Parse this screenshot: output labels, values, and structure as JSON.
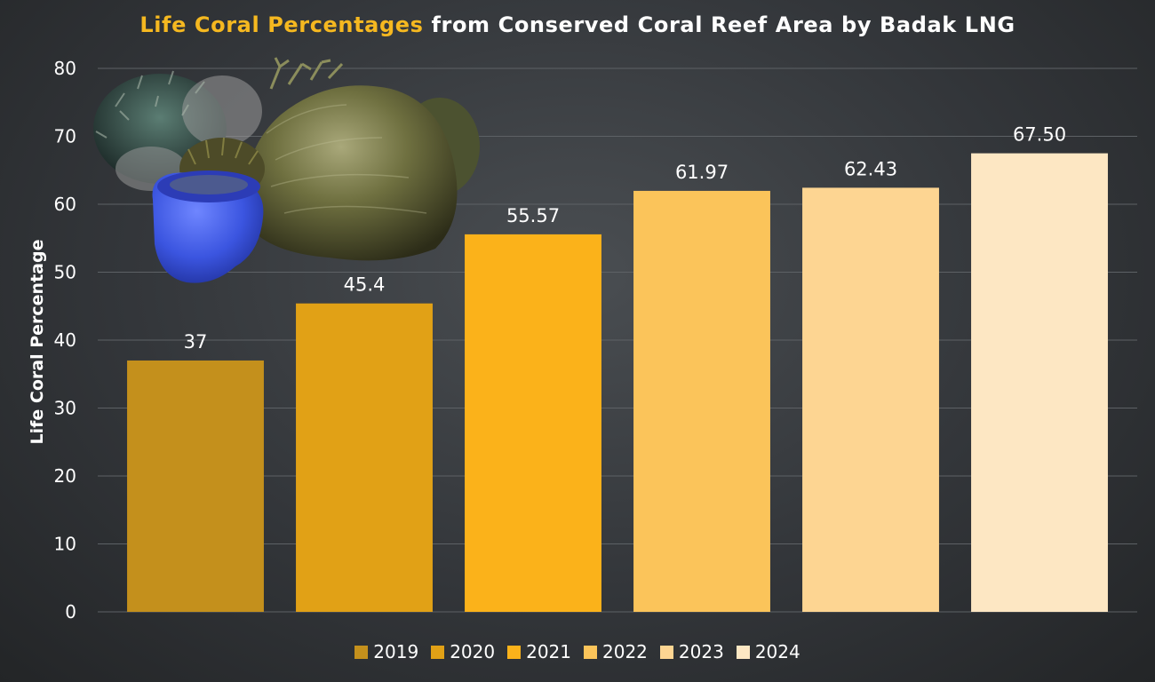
{
  "chart_data": {
    "type": "bar",
    "title_highlight": "Life Coral Percentages",
    "title_rest": " from Conserved Coral Reef Area by Badak LNG",
    "xlabel": "",
    "ylabel": "Life Coral Percentage",
    "ylim": [
      0,
      80
    ],
    "y_ticks": [
      "0",
      "10",
      "20",
      "30",
      "40",
      "50",
      "60",
      "70",
      "80"
    ],
    "grid": true,
    "legend_position": "bottom",
    "series": [
      {
        "name": "2019",
        "value": 37,
        "label": "37",
        "color": "#c4901c"
      },
      {
        "name": "2020",
        "value": 45.4,
        "label": "45.4",
        "color": "#e1a116"
      },
      {
        "name": "2021",
        "value": 55.57,
        "label": "55.57",
        "color": "#fbb21a"
      },
      {
        "name": "2022",
        "value": 61.97,
        "label": "61.97",
        "color": "#fbc45a"
      },
      {
        "name": "2023",
        "value": 62.43,
        "label": "62.43",
        "color": "#fdd592"
      },
      {
        "name": "2024",
        "value": 67.5,
        "label": "67.50",
        "color": "#fde7c3"
      }
    ]
  }
}
